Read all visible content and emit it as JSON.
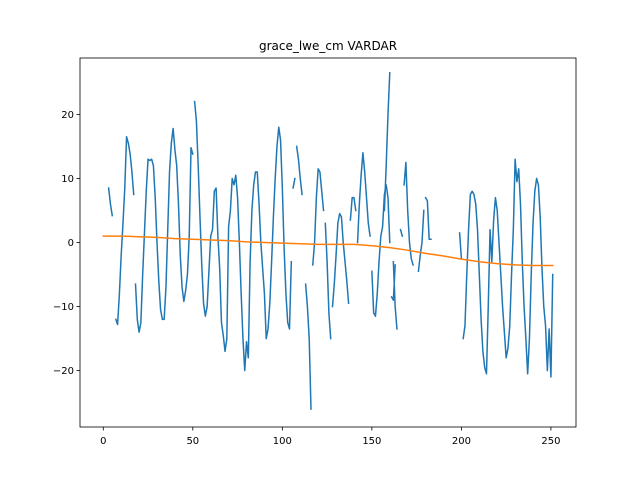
{
  "chart_data": {
    "type": "line",
    "title": "grace_lwe_cm VARDAR",
    "xlabel": "",
    "ylabel": "",
    "xlim": [
      -13,
      264
    ],
    "ylim": [
      -28.8,
      28.8
    ],
    "grid": false,
    "x_ticks": [
      0,
      50,
      100,
      150,
      200,
      250
    ],
    "y_ticks": [
      -20,
      -10,
      0,
      10,
      20
    ],
    "colors": {
      "series_1": "#1f77b4",
      "series_2": "#ff7f0e"
    },
    "series": [
      {
        "color": "#1f77b4",
        "segments": [
          [
            [
              3,
              8.5
            ],
            [
              4,
              6.0
            ],
            [
              5,
              4.2
            ]
          ],
          [
            [
              7,
              -12.0
            ],
            [
              8,
              -12.8
            ],
            [
              9,
              -8.0
            ],
            [
              10,
              -2.0
            ],
            [
              11,
              3.0
            ],
            [
              12,
              8.5
            ],
            [
              13,
              16.5
            ],
            [
              14,
              15.5
            ],
            [
              15,
              13.8
            ],
            [
              16,
              11.0
            ],
            [
              17,
              7.5
            ]
          ],
          [
            [
              18,
              -6.5
            ],
            [
              19,
              -12.0
            ],
            [
              20,
              -14.0
            ],
            [
              21,
              -12.5
            ],
            [
              22,
              -5.0
            ],
            [
              23,
              1.5
            ],
            [
              24,
              8.0
            ],
            [
              25,
              13.0
            ],
            [
              26,
              12.8
            ],
            [
              27,
              13.0
            ],
            [
              28,
              12.0
            ],
            [
              29,
              7.0
            ],
            [
              30,
              0.0
            ],
            [
              31,
              -6.0
            ],
            [
              32,
              -10.5
            ],
            [
              33,
              -12.0
            ],
            [
              34,
              -12.0
            ],
            [
              35,
              -7.0
            ],
            [
              36,
              2.0
            ],
            [
              37,
              11.0
            ],
            [
              38,
              15.5
            ],
            [
              39,
              17.8
            ],
            [
              40,
              14.5
            ],
            [
              41,
              12.0
            ],
            [
              42,
              6.0
            ],
            [
              43,
              -2.0
            ],
            [
              44,
              -7.0
            ],
            [
              45,
              -9.2
            ],
            [
              46,
              -7.5
            ],
            [
              47,
              -5.0
            ],
            [
              48,
              1.0
            ],
            [
              49,
              14.8
            ],
            [
              50,
              13.8
            ]
          ],
          [
            [
              51,
              22.0
            ],
            [
              52,
              19.0
            ],
            [
              53,
              12.0
            ],
            [
              54,
              4.0
            ],
            [
              55,
              -3.5
            ],
            [
              56,
              -9.5
            ],
            [
              57,
              -11.5
            ],
            [
              58,
              -10.0
            ],
            [
              59,
              -4.5
            ],
            [
              60,
              1.0
            ],
            [
              61,
              2.0
            ],
            [
              62,
              8.0
            ],
            [
              63,
              8.5
            ],
            [
              64,
              1.0
            ],
            [
              65,
              -4.0
            ],
            [
              66,
              -12.5
            ],
            [
              67,
              -14.5
            ],
            [
              68,
              -17.0
            ],
            [
              69,
              -15.0
            ],
            [
              70,
              2.5
            ],
            [
              71,
              5.0
            ],
            [
              72,
              10.0
            ],
            [
              73,
              9.0
            ],
            [
              74,
              10.5
            ],
            [
              75,
              7.0
            ],
            [
              76,
              0.0
            ],
            [
              77,
              -8.0
            ],
            [
              78,
              -15.0
            ],
            [
              79,
              -20.0
            ],
            [
              80,
              -15.5
            ],
            [
              81,
              -18.0
            ],
            [
              82,
              -3.0
            ],
            [
              83,
              5.0
            ],
            [
              84,
              9.0
            ],
            [
              85,
              11.0
            ],
            [
              86,
              11.0
            ],
            [
              87,
              6.0
            ],
            [
              88,
              0.0
            ],
            [
              89,
              -4.0
            ],
            [
              90,
              -8.0
            ],
            [
              91,
              -15.0
            ],
            [
              92,
              -13.5
            ],
            [
              93,
              -9.5
            ],
            [
              94,
              -3.0
            ],
            [
              95,
              4.0
            ],
            [
              96,
              10.0
            ],
            [
              97,
              15.0
            ],
            [
              98,
              18.0
            ],
            [
              99,
              16.0
            ],
            [
              100,
              8.5
            ],
            [
              101,
              -1.0
            ],
            [
              102,
              -8.0
            ],
            [
              103,
              -12.5
            ],
            [
              104,
              -13.5
            ],
            [
              105,
              -3.0
            ]
          ],
          [
            [
              106,
              8.5
            ],
            [
              107,
              10.0
            ]
          ],
          [
            [
              108,
              15.0
            ],
            [
              109,
              13.0
            ],
            [
              110,
              10.0
            ],
            [
              111,
              7.5
            ]
          ],
          [
            [
              113,
              -6.5
            ],
            [
              114,
              -10.0
            ],
            [
              115,
              -15.0
            ],
            [
              116,
              -26.0
            ]
          ],
          [
            [
              117,
              -3.5
            ],
            [
              118,
              0.0
            ],
            [
              119,
              7.0
            ],
            [
              120,
              11.5
            ],
            [
              121,
              11.0
            ],
            [
              122,
              8.0
            ],
            [
              123,
              5.0
            ]
          ],
          [
            [
              124,
              3.0
            ],
            [
              125,
              -3.0
            ],
            [
              126,
              -11.0
            ],
            [
              127,
              -15.0
            ]
          ],
          [
            [
              128,
              -10.0
            ],
            [
              129,
              -6.5
            ],
            [
              130,
              -2.0
            ],
            [
              131,
              3.0
            ],
            [
              132,
              4.5
            ],
            [
              133,
              4.0
            ],
            [
              134,
              0.0
            ],
            [
              135,
              -3.0
            ],
            [
              136,
              -6.0
            ],
            [
              137,
              -9.5
            ]
          ],
          [
            [
              138,
              3.5
            ],
            [
              139,
              7.0
            ],
            [
              140,
              7.0
            ],
            [
              141,
              5.0
            ]
          ],
          [
            [
              142,
              0.0
            ],
            [
              143,
              6.0
            ],
            [
              144,
              10.5
            ],
            [
              145,
              14.0
            ],
            [
              146,
              11.0
            ],
            [
              147,
              7.0
            ],
            [
              148,
              3.0
            ],
            [
              149,
              1.0
            ]
          ],
          [
            [
              150,
              -4.5
            ],
            [
              151,
              -11.0
            ],
            [
              152,
              -11.5
            ],
            [
              153,
              -8.0
            ],
            [
              154,
              -3.0
            ],
            [
              155,
              1.0
            ],
            [
              156,
              2.5
            ],
            [
              157,
              7.5
            ],
            [
              158,
              9.0
            ],
            [
              159,
              7.0
            ],
            [
              160,
              0.0
            ]
          ],
          [
            [
              161,
              -8.5
            ],
            [
              162,
              -9.0
            ],
            [
              163,
              -3.5
            ]
          ],
          [
            [
              157,
              5.0
            ],
            [
              158,
              12.0
            ],
            [
              159,
              20.0
            ],
            [
              160,
              26.5
            ]
          ],
          [
            [
              162,
              -3.0
            ],
            [
              163,
              -10.0
            ],
            [
              164,
              -13.5
            ]
          ],
          [
            [
              166,
              2.0
            ],
            [
              167,
              1.0
            ]
          ],
          [
            [
              168,
              9.0
            ],
            [
              169,
              12.5
            ],
            [
              170,
              5.0
            ],
            [
              171,
              0.0
            ],
            [
              172,
              -2.5
            ],
            [
              173,
              -3.5
            ]
          ],
          [
            [
              176,
              -4.5
            ],
            [
              177,
              -2.0
            ],
            [
              178,
              0.0
            ],
            [
              179,
              5.0
            ]
          ],
          [
            [
              180,
              7.0
            ],
            [
              181,
              6.5
            ],
            [
              182,
              0.5
            ],
            [
              183,
              0.5
            ]
          ],
          [
            [
              199,
              1.5
            ],
            [
              200,
              -2.5
            ]
          ],
          [
            [
              201,
              -15.0
            ],
            [
              202,
              -13.0
            ],
            [
              203,
              -5.0
            ],
            [
              204,
              2.0
            ],
            [
              205,
              7.5
            ],
            [
              206,
              8.0
            ],
            [
              207,
              7.5
            ],
            [
              208,
              6.0
            ],
            [
              209,
              2.0
            ],
            [
              210,
              -5.0
            ],
            [
              211,
              -12.0
            ],
            [
              212,
              -17.0
            ],
            [
              213,
              -19.5
            ],
            [
              214,
              -20.5
            ],
            [
              215,
              -10.0
            ],
            [
              216,
              2.0
            ],
            [
              217,
              -3.0
            ],
            [
              218,
              3.5
            ],
            [
              219,
              7.0
            ],
            [
              220,
              5.0
            ],
            [
              221,
              0.0
            ],
            [
              222,
              -5.0
            ],
            [
              223,
              -10.0
            ],
            [
              224,
              -14.0
            ],
            [
              225,
              -18.0
            ],
            [
              226,
              -16.5
            ],
            [
              227,
              -13.0
            ],
            [
              228,
              -5.0
            ],
            [
              229,
              2.0
            ],
            [
              230,
              13.0
            ],
            [
              231,
              9.5
            ],
            [
              232,
              11.5
            ],
            [
              233,
              6.0
            ],
            [
              234,
              -3.0
            ],
            [
              235,
              -10.0
            ],
            [
              236,
              -15.0
            ],
            [
              237,
              -20.5
            ],
            [
              238,
              -15.0
            ],
            [
              239,
              -5.0
            ],
            [
              240,
              3.0
            ],
            [
              241,
              8.0
            ],
            [
              242,
              10.0
            ],
            [
              243,
              9.0
            ],
            [
              244,
              4.0
            ],
            [
              245,
              -4.0
            ],
            [
              246,
              -10.0
            ],
            [
              247,
              -13.0
            ],
            [
              248,
              -20.0
            ],
            [
              249,
              -13.5
            ],
            [
              250,
              -21.0
            ],
            [
              251,
              -5.0
            ]
          ]
        ]
      },
      {
        "color": "#ff7f0e",
        "points": [
          [
            0,
            1.0
          ],
          [
            10,
            1.0
          ],
          [
            20,
            0.9
          ],
          [
            30,
            0.8
          ],
          [
            40,
            0.6
          ],
          [
            50,
            0.5
          ],
          [
            60,
            0.4
          ],
          [
            70,
            0.3
          ],
          [
            80,
            0.1
          ],
          [
            90,
            0.0
          ],
          [
            100,
            -0.1
          ],
          [
            110,
            -0.2
          ],
          [
            120,
            -0.3
          ],
          [
            130,
            -0.3
          ],
          [
            140,
            -0.3
          ],
          [
            150,
            -0.5
          ],
          [
            160,
            -0.8
          ],
          [
            170,
            -1.2
          ],
          [
            180,
            -1.7
          ],
          [
            190,
            -2.1
          ],
          [
            200,
            -2.6
          ],
          [
            210,
            -3.0
          ],
          [
            220,
            -3.3
          ],
          [
            230,
            -3.5
          ],
          [
            240,
            -3.6
          ],
          [
            251,
            -3.6
          ]
        ]
      }
    ]
  }
}
